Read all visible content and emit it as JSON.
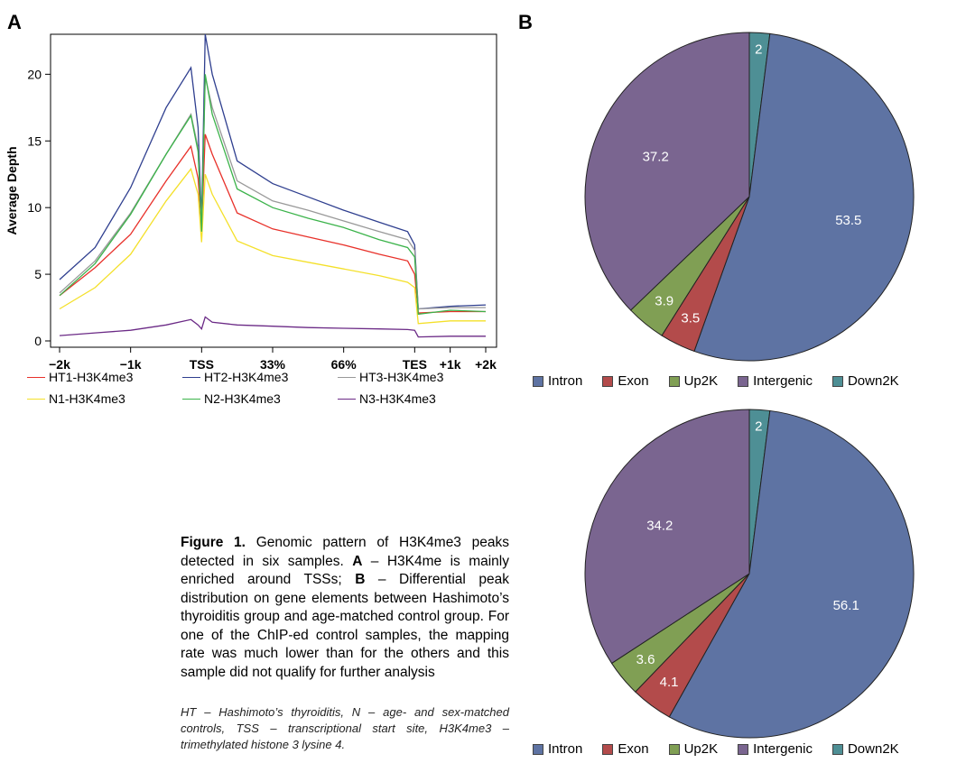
{
  "panels": {
    "a_label": "A",
    "b_label": "B"
  },
  "caption": {
    "lead": "Figure 1.",
    "part1": " Genomic pattern of H3K4me3 peaks detected in six samples. ",
    "a": "A",
    "part2": " – H3K4me is mainly enriched around TSSs; ",
    "b": "B",
    "part3": " – Differential peak distribution on gene elements between Hashimoto’s thyroiditis group and age-matched control group. For one of the ChIP-ed control samples, the mapping rate was much lower than for the others and this sample did not qualify for further analysis",
    "abbreviations": "HT – Hashimoto’s thyroiditis, N – age- and sex-matched controls, TSS – transcriptional start site, H3K4me3 – trimethylated histone 3 lysine 4."
  },
  "chart_data": [
    {
      "type": "line",
      "ylabel": "Average Depth",
      "ylim": [
        0,
        23
      ],
      "yticks": [
        0,
        5,
        10,
        15,
        20
      ],
      "xlim": [
        -2,
        4
      ],
      "xticks": [
        {
          "pos": -2,
          "label": "−2k"
        },
        {
          "pos": -1,
          "label": "−1k"
        },
        {
          "pos": 0,
          "label": "TSS"
        },
        {
          "pos": 1,
          "label": "33%"
        },
        {
          "pos": 2,
          "label": "66%"
        },
        {
          "pos": 3,
          "label": "TES"
        },
        {
          "pos": 3.5,
          "label": "+1k"
        },
        {
          "pos": 4,
          "label": "+2k"
        }
      ],
      "x": [
        -2,
        -1.5,
        -1,
        -0.5,
        -0.15,
        -0.05,
        0,
        0.05,
        0.15,
        0.5,
        1,
        1.5,
        2,
        2.5,
        2.9,
        3,
        3.05,
        3.5,
        4
      ],
      "series": [
        {
          "name": "HT1-H3K4me3",
          "color": "#e8312a",
          "values": [
            3.4,
            5.5,
            8.0,
            12.0,
            14.6,
            12.2,
            8.5,
            15.5,
            14.0,
            9.6,
            8.4,
            7.8,
            7.2,
            6.5,
            6.0,
            5.0,
            2.1,
            2.2,
            2.2
          ]
        },
        {
          "name": "HT2-H3K4me3",
          "color": "#2f3f8f",
          "values": [
            4.6,
            7.0,
            11.5,
            17.5,
            20.5,
            16.0,
            9.0,
            23.0,
            20.0,
            13.5,
            11.8,
            10.8,
            9.8,
            8.9,
            8.2,
            7.2,
            2.4,
            2.6,
            2.7
          ]
        },
        {
          "name": "HT3-H3K4me3",
          "color": "#999999",
          "values": [
            3.6,
            6.0,
            9.6,
            14.0,
            17.0,
            14.5,
            8.5,
            19.8,
            17.5,
            12.0,
            10.5,
            9.8,
            9.0,
            8.2,
            7.6,
            6.8,
            2.4,
            2.5,
            2.5
          ]
        },
        {
          "name": "N1-H3K4me3",
          "color": "#f4e02a",
          "values": [
            2.4,
            4.0,
            6.5,
            10.5,
            12.9,
            11.0,
            7.4,
            12.5,
            11.0,
            7.5,
            6.4,
            5.9,
            5.4,
            4.9,
            4.4,
            4.0,
            1.3,
            1.5,
            1.5
          ]
        },
        {
          "name": "N2-H3K4me3",
          "color": "#3bb34a",
          "values": [
            3.4,
            5.8,
            9.5,
            14.0,
            16.9,
            14.2,
            8.2,
            20.0,
            17.0,
            11.4,
            10.0,
            9.2,
            8.5,
            7.6,
            7.0,
            6.3,
            2.0,
            2.3,
            2.2
          ]
        },
        {
          "name": "N3-H3K4me3",
          "color": "#6b2a86",
          "values": [
            0.4,
            0.6,
            0.8,
            1.2,
            1.6,
            1.2,
            0.9,
            1.8,
            1.4,
            1.2,
            1.1,
            1.0,
            0.95,
            0.9,
            0.85,
            0.8,
            0.3,
            0.35,
            0.35
          ]
        }
      ]
    },
    {
      "type": "pie",
      "categories": [
        "Intron",
        "Exon",
        "Up2K",
        "Intergenic",
        "Down2K"
      ],
      "values": [
        53.5,
        3.5,
        3.9,
        37.2,
        2
      ],
      "colors": [
        "#5e73a3",
        "#b34b4b",
        "#809f54",
        "#7a6590",
        "#4e8f95"
      ]
    },
    {
      "type": "pie",
      "categories": [
        "Intron",
        "Exon",
        "Up2K",
        "Intergenic",
        "Down2K"
      ],
      "values": [
        56.1,
        4.1,
        3.6,
        34.2,
        2
      ],
      "colors": [
        "#5e73a3",
        "#b34b4b",
        "#809f54",
        "#7a6590",
        "#4e8f95"
      ]
    }
  ]
}
